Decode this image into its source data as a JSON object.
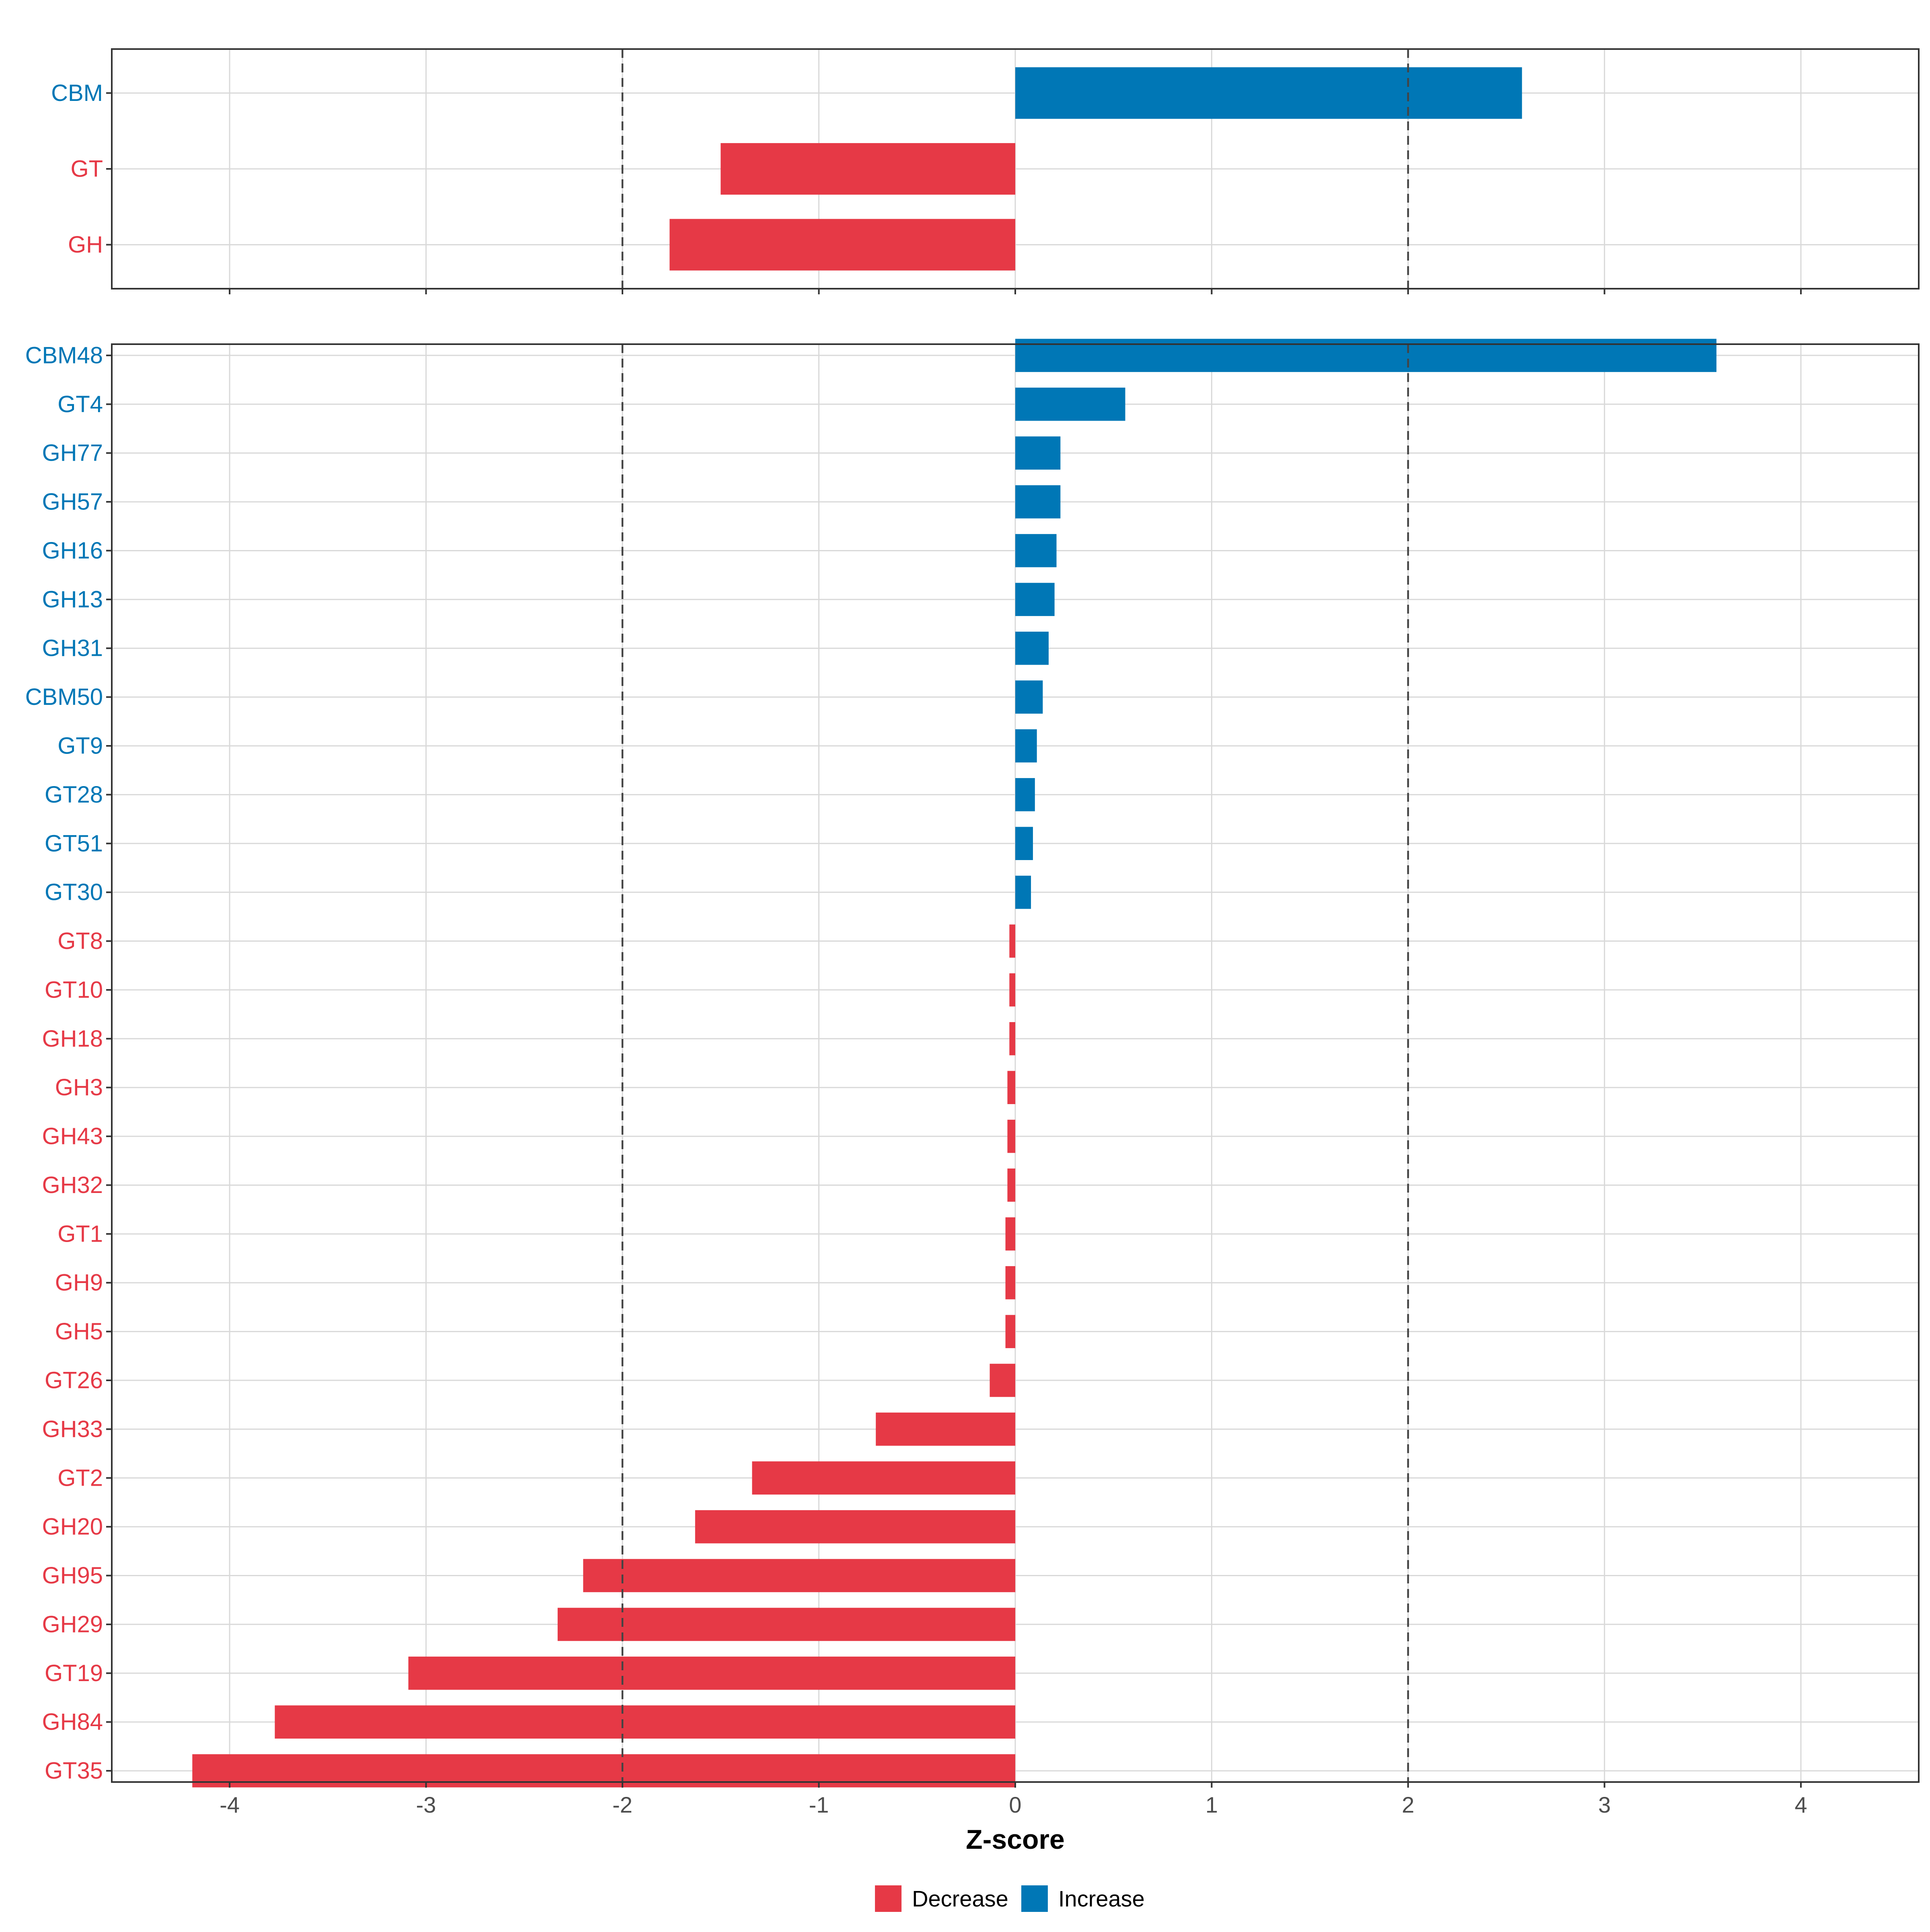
{
  "colors": {
    "decrease": "#E63946",
    "increase": "#0077B6",
    "grid": "#D9D9D9",
    "panel_border": "#333333",
    "axis_text": "#4D4D4D",
    "threshold_line": "#444444"
  },
  "chart_data": {
    "type": "bar",
    "orientation": "horizontal",
    "xlabel": "Z-score",
    "xlim": [
      -4.6,
      4.6
    ],
    "x_ticks": [
      -4,
      -3,
      -2,
      -1,
      0,
      1,
      2,
      3,
      4
    ],
    "x_tick_labels": [
      "-4",
      "-3",
      "-2",
      "-1",
      "0",
      "1",
      "2",
      "3",
      "4"
    ],
    "threshold_lines": [
      -2,
      2
    ],
    "grid": true,
    "legend": {
      "position": "bottom",
      "entries": [
        {
          "label": "Decrease",
          "key": "decrease"
        },
        {
          "label": "Increase",
          "key": "increase"
        }
      ]
    },
    "panels": [
      {
        "name": "enzyme-class",
        "categories": [
          "CBM",
          "GT",
          "GH"
        ],
        "values": [
          2.58,
          -1.5,
          -1.76
        ]
      },
      {
        "name": "enzyme-family",
        "categories": [
          "CBM48",
          "GT4",
          "GH77",
          "GH57",
          "GH16",
          "GH13",
          "GH31",
          "CBM50",
          "GT9",
          "GT28",
          "GT51",
          "GT30",
          "GT8",
          "GT10",
          "GH18",
          "GH3",
          "GH43",
          "GH32",
          "GT1",
          "GH9",
          "GH5",
          "GT26",
          "GH33",
          "GT2",
          "GH20",
          "GH95",
          "GH29",
          "GT19",
          "GH84",
          "GT35"
        ],
        "values": [
          3.57,
          0.56,
          0.23,
          0.23,
          0.21,
          0.2,
          0.17,
          0.14,
          0.11,
          0.1,
          0.09,
          0.08,
          -0.03,
          -0.03,
          -0.03,
          -0.04,
          -0.04,
          -0.04,
          -0.05,
          -0.05,
          -0.05,
          -0.13,
          -0.71,
          -1.34,
          -1.63,
          -2.2,
          -2.33,
          -3.09,
          -3.77,
          -4.19
        ]
      }
    ]
  }
}
